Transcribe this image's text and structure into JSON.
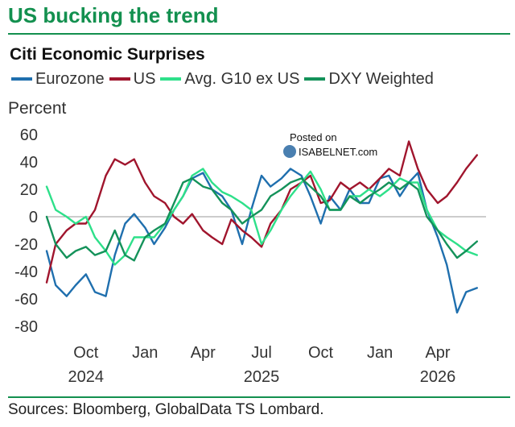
{
  "header": {
    "title": "US bucking the trend"
  },
  "watermark": {
    "line1": "Posted on",
    "line2": "ISABELNET.com"
  },
  "source": "Sources: Bloomberg, GlobalData TS Lombard.",
  "colors": {
    "brand": "#13904f",
    "eurozone": "#1f6fae",
    "us": "#a0152d",
    "g10": "#2ee08a",
    "dxy": "#14925a",
    "zero_line": "#9a9a9a"
  },
  "chart_data": {
    "type": "line",
    "title": "Citi Economic Surprises",
    "ylabel": "Percent",
    "xlabel": "",
    "ylim": [
      -80,
      60
    ],
    "yticks": [
      60,
      40,
      20,
      0,
      -20,
      -40,
      -60,
      -80
    ],
    "xlim": [
      "2024-08-01",
      "2026-06-15"
    ],
    "xticks": [
      {
        "month": "Oct",
        "year": "2024",
        "date": "2024-10-01"
      },
      {
        "month": "Jan",
        "year": "",
        "date": "2025-01-01"
      },
      {
        "month": "Apr",
        "year": "",
        "date": "2025-04-01"
      },
      {
        "month": "Jul",
        "year": "2025",
        "date": "2025-07-01"
      },
      {
        "month": "Oct",
        "year": "",
        "date": "2025-10-01"
      },
      {
        "month": "Jan",
        "year": "",
        "date": "2026-01-01"
      },
      {
        "month": "Apr",
        "year": "2026",
        "date": "2026-04-01"
      }
    ],
    "grid": false,
    "legend_position": "top",
    "series": [
      {
        "name": "Eurozone",
        "color": "#1f6fae",
        "points": [
          [
            "2024-08-01",
            -25
          ],
          [
            "2024-08-15",
            -50
          ],
          [
            "2024-09-01",
            -58
          ],
          [
            "2024-09-15",
            -50
          ],
          [
            "2024-10-01",
            -42
          ],
          [
            "2024-10-15",
            -55
          ],
          [
            "2024-11-01",
            -58
          ],
          [
            "2024-11-15",
            -28
          ],
          [
            "2024-12-01",
            -5
          ],
          [
            "2024-12-15",
            2
          ],
          [
            "2025-01-01",
            -8
          ],
          [
            "2025-01-15",
            -20
          ],
          [
            "2025-02-01",
            -8
          ],
          [
            "2025-02-15",
            5
          ],
          [
            "2025-03-01",
            15
          ],
          [
            "2025-03-15",
            28
          ],
          [
            "2025-04-01",
            32
          ],
          [
            "2025-04-15",
            20
          ],
          [
            "2025-05-01",
            15
          ],
          [
            "2025-05-15",
            5
          ],
          [
            "2025-06-01",
            -20
          ],
          [
            "2025-06-15",
            5
          ],
          [
            "2025-07-01",
            30
          ],
          [
            "2025-07-15",
            22
          ],
          [
            "2025-08-01",
            28
          ],
          [
            "2025-08-15",
            35
          ],
          [
            "2025-09-01",
            30
          ],
          [
            "2025-09-15",
            15
          ],
          [
            "2025-10-01",
            -5
          ],
          [
            "2025-10-15",
            15
          ],
          [
            "2025-11-01",
            5
          ],
          [
            "2025-11-15",
            20
          ],
          [
            "2025-12-01",
            10
          ],
          [
            "2025-12-15",
            10
          ],
          [
            "2026-01-01",
            28
          ],
          [
            "2026-01-15",
            30
          ],
          [
            "2026-02-01",
            15
          ],
          [
            "2026-02-15",
            25
          ],
          [
            "2026-03-01",
            32
          ],
          [
            "2026-03-15",
            5
          ],
          [
            "2026-04-01",
            -15
          ],
          [
            "2026-04-15",
            -35
          ],
          [
            "2026-05-01",
            -70
          ],
          [
            "2026-05-15",
            -55
          ],
          [
            "2026-06-01",
            -52
          ]
        ]
      },
      {
        "name": "US",
        "color": "#a0152d",
        "points": [
          [
            "2024-08-01",
            -48
          ],
          [
            "2024-08-15",
            -20
          ],
          [
            "2024-09-01",
            -10
          ],
          [
            "2024-09-15",
            -5
          ],
          [
            "2024-10-01",
            -5
          ],
          [
            "2024-10-15",
            5
          ],
          [
            "2024-11-01",
            30
          ],
          [
            "2024-11-15",
            42
          ],
          [
            "2024-12-01",
            38
          ],
          [
            "2024-12-15",
            42
          ],
          [
            "2025-01-01",
            25
          ],
          [
            "2025-01-15",
            15
          ],
          [
            "2025-02-01",
            10
          ],
          [
            "2025-02-15",
            0
          ],
          [
            "2025-03-01",
            -5
          ],
          [
            "2025-03-15",
            2
          ],
          [
            "2025-04-01",
            -10
          ],
          [
            "2025-04-15",
            -15
          ],
          [
            "2025-05-01",
            -20
          ],
          [
            "2025-05-15",
            -2
          ],
          [
            "2025-06-01",
            -10
          ],
          [
            "2025-06-15",
            -15
          ],
          [
            "2025-07-01",
            -22
          ],
          [
            "2025-07-15",
            -5
          ],
          [
            "2025-08-01",
            5
          ],
          [
            "2025-08-15",
            20
          ],
          [
            "2025-09-01",
            25
          ],
          [
            "2025-09-15",
            30
          ],
          [
            "2025-10-01",
            10
          ],
          [
            "2025-10-15",
            12
          ],
          [
            "2025-11-01",
            25
          ],
          [
            "2025-11-15",
            20
          ],
          [
            "2025-12-01",
            25
          ],
          [
            "2025-12-15",
            20
          ],
          [
            "2026-01-01",
            28
          ],
          [
            "2026-01-15",
            35
          ],
          [
            "2026-02-01",
            30
          ],
          [
            "2026-02-15",
            55
          ],
          [
            "2026-03-01",
            35
          ],
          [
            "2026-03-15",
            20
          ],
          [
            "2026-04-01",
            10
          ],
          [
            "2026-04-15",
            15
          ],
          [
            "2026-05-01",
            25
          ],
          [
            "2026-05-15",
            35
          ],
          [
            "2026-06-01",
            45
          ]
        ]
      },
      {
        "name": "Avg. G10 ex US",
        "color": "#2ee08a",
        "points": [
          [
            "2024-08-01",
            22
          ],
          [
            "2024-08-15",
            5
          ],
          [
            "2024-09-01",
            0
          ],
          [
            "2024-09-15",
            -5
          ],
          [
            "2024-10-01",
            0
          ],
          [
            "2024-10-15",
            -15
          ],
          [
            "2024-11-01",
            -25
          ],
          [
            "2024-11-15",
            -35
          ],
          [
            "2024-12-01",
            -28
          ],
          [
            "2024-12-15",
            -15
          ],
          [
            "2025-01-01",
            -15
          ],
          [
            "2025-01-15",
            -15
          ],
          [
            "2025-02-01",
            -5
          ],
          [
            "2025-02-15",
            5
          ],
          [
            "2025-03-01",
            15
          ],
          [
            "2025-03-15",
            30
          ],
          [
            "2025-04-01",
            35
          ],
          [
            "2025-04-15",
            25
          ],
          [
            "2025-05-01",
            18
          ],
          [
            "2025-05-15",
            15
          ],
          [
            "2025-06-01",
            10
          ],
          [
            "2025-06-15",
            5
          ],
          [
            "2025-07-01",
            -20
          ],
          [
            "2025-07-15",
            -10
          ],
          [
            "2025-08-01",
            5
          ],
          [
            "2025-08-15",
            15
          ],
          [
            "2025-09-01",
            25
          ],
          [
            "2025-09-15",
            33
          ],
          [
            "2025-10-01",
            20
          ],
          [
            "2025-10-15",
            5
          ],
          [
            "2025-11-01",
            5
          ],
          [
            "2025-11-15",
            15
          ],
          [
            "2025-12-01",
            15
          ],
          [
            "2025-12-15",
            20
          ],
          [
            "2026-01-01",
            15
          ],
          [
            "2026-01-15",
            20
          ],
          [
            "2026-02-01",
            28
          ],
          [
            "2026-02-15",
            25
          ],
          [
            "2026-03-01",
            25
          ],
          [
            "2026-03-15",
            5
          ],
          [
            "2026-04-01",
            -10
          ],
          [
            "2026-04-15",
            -15
          ],
          [
            "2026-05-01",
            -20
          ],
          [
            "2026-05-15",
            -25
          ],
          [
            "2026-06-01",
            -28
          ]
        ]
      },
      {
        "name": "DXY Weighted",
        "color": "#14925a",
        "points": [
          [
            "2024-08-01",
            0
          ],
          [
            "2024-08-15",
            -20
          ],
          [
            "2024-09-01",
            -30
          ],
          [
            "2024-09-15",
            -25
          ],
          [
            "2024-10-01",
            -22
          ],
          [
            "2024-10-15",
            -28
          ],
          [
            "2024-11-01",
            -25
          ],
          [
            "2024-11-15",
            -10
          ],
          [
            "2024-12-01",
            -28
          ],
          [
            "2024-12-15",
            -32
          ],
          [
            "2025-01-01",
            -15
          ],
          [
            "2025-01-15",
            -10
          ],
          [
            "2025-02-01",
            -5
          ],
          [
            "2025-02-15",
            10
          ],
          [
            "2025-03-01",
            25
          ],
          [
            "2025-03-15",
            28
          ],
          [
            "2025-04-01",
            22
          ],
          [
            "2025-04-15",
            20
          ],
          [
            "2025-05-01",
            10
          ],
          [
            "2025-05-15",
            5
          ],
          [
            "2025-06-01",
            -5
          ],
          [
            "2025-06-15",
            0
          ],
          [
            "2025-07-01",
            5
          ],
          [
            "2025-07-15",
            15
          ],
          [
            "2025-08-01",
            20
          ],
          [
            "2025-08-15",
            25
          ],
          [
            "2025-09-01",
            28
          ],
          [
            "2025-09-15",
            22
          ],
          [
            "2025-10-01",
            15
          ],
          [
            "2025-10-15",
            5
          ],
          [
            "2025-11-01",
            5
          ],
          [
            "2025-11-15",
            15
          ],
          [
            "2025-12-01",
            10
          ],
          [
            "2025-12-15",
            15
          ],
          [
            "2026-01-01",
            20
          ],
          [
            "2026-01-15",
            25
          ],
          [
            "2026-02-01",
            20
          ],
          [
            "2026-02-15",
            25
          ],
          [
            "2026-03-01",
            20
          ],
          [
            "2026-03-15",
            0
          ],
          [
            "2026-04-01",
            -10
          ],
          [
            "2026-04-15",
            -20
          ],
          [
            "2026-05-01",
            -30
          ],
          [
            "2026-05-15",
            -25
          ],
          [
            "2026-06-01",
            -18
          ]
        ]
      }
    ]
  }
}
